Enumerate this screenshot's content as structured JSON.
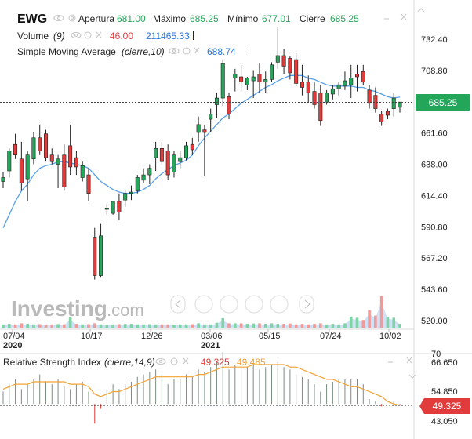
{
  "header": {
    "symbol": "EWG",
    "open_label": "Apertura",
    "open_value": "681.00",
    "high_label": "Máximo",
    "high_value": "685.25",
    "low_label": "Mínimo",
    "low_value": "677.01",
    "close_label": "Cierre",
    "close_value": "685.25",
    "volume_label": "Volume",
    "volume_param": "(9)",
    "volume_value_red": "46.00",
    "volume_value_blue": "211465.33",
    "sma_label": "Simple Moving Average",
    "sma_param": "(cierre,10)",
    "sma_value": "688.74"
  },
  "rsi_header": {
    "label": "Relative Strength Index",
    "param": "(cierre,14,9)",
    "value_red": "49.325",
    "value_orange": "49.485"
  },
  "price_axis": {
    "ticks": [
      "732.40",
      "708.80",
      "685.25",
      "661.60",
      "638.00",
      "614.40",
      "590.80",
      "567.20",
      "543.60",
      "520.00"
    ],
    "current_label": "685.25"
  },
  "rsi_axis": {
    "ticks": [
      "70",
      "66.650",
      "54.850",
      "43.050"
    ],
    "current_label": "49.325"
  },
  "x_axis": {
    "ticks": [
      {
        "label": "07/04",
        "year": "2020"
      },
      {
        "label": "10/17",
        "year": ""
      },
      {
        "label": "12/26",
        "year": ""
      },
      {
        "label": "03/06",
        "year": "2021"
      },
      {
        "label": "05/15",
        "year": ""
      },
      {
        "label": "07/24",
        "year": ""
      },
      {
        "label": "10/02",
        "year": ""
      }
    ]
  },
  "watermark": {
    "brand": "Investing",
    "suffix": ".com"
  },
  "colors": {
    "up": "#26a65b",
    "down": "#e23b3b",
    "sma": "#5aa0e6",
    "rsi_line": "#f4a233",
    "badge": "#23a55a",
    "rsi_badge": "#e23b3b"
  },
  "chart_data": {
    "type": "candlestick",
    "title": "EWG",
    "y_range": [
      520.0,
      742.0
    ],
    "candles": [
      {
        "o": 625,
        "h": 632,
        "l": 620,
        "c": 628
      },
      {
        "o": 633,
        "h": 650,
        "l": 628,
        "c": 648
      },
      {
        "o": 653,
        "h": 661,
        "l": 642,
        "c": 645
      },
      {
        "o": 642,
        "h": 655,
        "l": 618,
        "c": 624
      },
      {
        "o": 627,
        "h": 648,
        "l": 610,
        "c": 645
      },
      {
        "o": 642,
        "h": 662,
        "l": 638,
        "c": 658
      },
      {
        "o": 658,
        "h": 668,
        "l": 645,
        "c": 648
      },
      {
        "o": 661,
        "h": 664,
        "l": 640,
        "c": 643
      },
      {
        "o": 645,
        "h": 650,
        "l": 638,
        "c": 640
      },
      {
        "o": 638,
        "h": 645,
        "l": 620,
        "c": 642
      },
      {
        "o": 645,
        "h": 653,
        "l": 618,
        "c": 621
      },
      {
        "o": 652,
        "h": 668,
        "l": 630,
        "c": 636
      },
      {
        "o": 643,
        "h": 648,
        "l": 630,
        "c": 636
      },
      {
        "o": 628,
        "h": 640,
        "l": 625,
        "c": 637
      },
      {
        "o": 630,
        "h": 635,
        "l": 610,
        "c": 616
      },
      {
        "o": 583,
        "h": 590,
        "l": 551,
        "c": 554
      },
      {
        "o": 554,
        "h": 593,
        "l": 553,
        "c": 584
      },
      {
        "o": 604,
        "h": 608,
        "l": 600,
        "c": 605
      },
      {
        "o": 601,
        "h": 610,
        "l": 600,
        "c": 610
      },
      {
        "o": 610,
        "h": 616,
        "l": 596,
        "c": 602
      },
      {
        "o": 611,
        "h": 618,
        "l": 606,
        "c": 616
      },
      {
        "o": 616,
        "h": 622,
        "l": 611,
        "c": 617
      },
      {
        "o": 618,
        "h": 630,
        "l": 616,
        "c": 628
      },
      {
        "o": 626,
        "h": 635,
        "l": 624,
        "c": 630
      },
      {
        "o": 630,
        "h": 638,
        "l": 623,
        "c": 635
      },
      {
        "o": 643,
        "h": 655,
        "l": 633,
        "c": 650
      },
      {
        "o": 650,
        "h": 655,
        "l": 638,
        "c": 640
      },
      {
        "o": 648,
        "h": 653,
        "l": 626,
        "c": 630
      },
      {
        "o": 632,
        "h": 648,
        "l": 628,
        "c": 645
      },
      {
        "o": 640,
        "h": 648,
        "l": 635,
        "c": 643
      },
      {
        "o": 643,
        "h": 655,
        "l": 641,
        "c": 652
      },
      {
        "o": 653,
        "h": 658,
        "l": 645,
        "c": 649
      },
      {
        "o": 662,
        "h": 674,
        "l": 655,
        "c": 668
      },
      {
        "o": 664,
        "h": 668,
        "l": 629,
        "c": 662
      },
      {
        "o": 672,
        "h": 680,
        "l": 662,
        "c": 676
      },
      {
        "o": 683,
        "h": 692,
        "l": 673,
        "c": 688
      },
      {
        "o": 688,
        "h": 717,
        "l": 682,
        "c": 714
      },
      {
        "o": 689,
        "h": 692,
        "l": 672,
        "c": 676
      },
      {
        "o": 703,
        "h": 710,
        "l": 693,
        "c": 706
      },
      {
        "o": 704,
        "h": 713,
        "l": 693,
        "c": 700
      },
      {
        "o": 698,
        "h": 704,
        "l": 694,
        "c": 703
      },
      {
        "o": 701,
        "h": 709,
        "l": 688,
        "c": 704
      },
      {
        "o": 706,
        "h": 714,
        "l": 692,
        "c": 700
      },
      {
        "o": 700,
        "h": 708,
        "l": 692,
        "c": 702
      },
      {
        "o": 702,
        "h": 715,
        "l": 700,
        "c": 713
      },
      {
        "o": 715,
        "h": 742,
        "l": 710,
        "c": 720
      },
      {
        "o": 720,
        "h": 725,
        "l": 706,
        "c": 712
      },
      {
        "o": 718,
        "h": 720,
        "l": 702,
        "c": 707
      },
      {
        "o": 717,
        "h": 722,
        "l": 697,
        "c": 699
      },
      {
        "o": 700,
        "h": 713,
        "l": 690,
        "c": 696
      },
      {
        "o": 700,
        "h": 705,
        "l": 684,
        "c": 692
      },
      {
        "o": 693,
        "h": 700,
        "l": 680,
        "c": 683
      },
      {
        "o": 692,
        "h": 698,
        "l": 667,
        "c": 671
      },
      {
        "o": 685,
        "h": 694,
        "l": 683,
        "c": 692
      },
      {
        "o": 691,
        "h": 698,
        "l": 687,
        "c": 695
      },
      {
        "o": 695,
        "h": 700,
        "l": 690,
        "c": 698
      },
      {
        "o": 697,
        "h": 708,
        "l": 694,
        "c": 701
      },
      {
        "o": 698,
        "h": 713,
        "l": 688,
        "c": 703
      },
      {
        "o": 706,
        "h": 713,
        "l": 693,
        "c": 704
      },
      {
        "o": 708,
        "h": 713,
        "l": 698,
        "c": 700
      },
      {
        "o": 694,
        "h": 698,
        "l": 680,
        "c": 684
      },
      {
        "o": 690,
        "h": 696,
        "l": 677,
        "c": 680
      },
      {
        "o": 676,
        "h": 678,
        "l": 667,
        "c": 670
      },
      {
        "o": 678,
        "h": 680,
        "l": 672,
        "c": 675
      },
      {
        "o": 680,
        "h": 692,
        "l": 674,
        "c": 688
      },
      {
        "o": 681,
        "h": 685,
        "l": 677,
        "c": 685
      }
    ],
    "sma": [
      590,
      600,
      610,
      618,
      623,
      630,
      635,
      637,
      638,
      640,
      640,
      639,
      638,
      637,
      635,
      630,
      625,
      622,
      619,
      617,
      616,
      616,
      617,
      619,
      622,
      627,
      631,
      634,
      637,
      639,
      641,
      645,
      652,
      658,
      663,
      668,
      673,
      676,
      680,
      684,
      687,
      690,
      693,
      696,
      698,
      701,
      703,
      705,
      705,
      705,
      703,
      702,
      700,
      698,
      697,
      697,
      697,
      697,
      696,
      696,
      694,
      693,
      691,
      689,
      688,
      688.74
    ],
    "volume": [
      0.3,
      0.35,
      0.3,
      0.4,
      0.35,
      0.3,
      0.32,
      0.28,
      0.3,
      0.33,
      0.3,
      0.95,
      0.35,
      0.3,
      0.32,
      0.4,
      0.3,
      0.28,
      0.3,
      0.32,
      0.34,
      0.35,
      0.3,
      0.3,
      0.32,
      0.3,
      0.3,
      0.3,
      0.28,
      0.3,
      0.3,
      0.32,
      0.4,
      0.3,
      0.3,
      0.45,
      0.85,
      0.4,
      0.4,
      0.4,
      0.35,
      0.38,
      0.4,
      0.35,
      0.4,
      0.35,
      0.35,
      0.38,
      0.3,
      0.35,
      0.3,
      0.35,
      0.4,
      0.3,
      0.35,
      0.3,
      0.4,
      1.0,
      0.9,
      0.7,
      1.6,
      1.1,
      2.9,
      1.0,
      0.9,
      0.35
    ],
    "volume_dir": [
      1,
      1,
      0,
      0,
      1,
      1,
      0,
      0,
      0,
      1,
      0,
      1,
      0,
      1,
      0,
      0,
      1,
      1,
      1,
      0,
      1,
      1,
      1,
      1,
      1,
      1,
      0,
      0,
      1,
      1,
      1,
      0,
      1,
      1,
      1,
      1,
      1,
      0,
      1,
      0,
      1,
      1,
      0,
      1,
      1,
      1,
      0,
      0,
      0,
      0,
      0,
      0,
      0,
      1,
      1,
      1,
      1,
      1,
      1,
      0,
      0,
      0,
      0,
      1,
      1,
      1
    ],
    "rsi": {
      "range": [
        35,
        75
      ],
      "values": [
        55,
        58,
        60,
        56,
        58,
        60,
        62,
        59,
        58,
        60,
        57,
        56,
        58,
        59,
        55,
        42,
        48,
        56,
        58,
        56,
        58,
        59,
        61,
        62,
        63,
        64,
        62,
        58,
        60,
        60,
        62,
        61,
        64,
        63,
        65,
        67,
        71,
        64,
        66,
        65,
        65,
        66,
        64,
        65,
        66,
        67,
        65,
        64,
        62,
        61,
        60,
        58,
        55,
        58,
        59,
        60,
        60,
        60,
        60,
        58,
        52,
        51,
        49,
        50,
        51,
        49.325
      ],
      "signal": [
        56,
        57,
        58,
        58,
        58,
        59,
        59,
        59,
        59,
        59,
        59,
        58,
        58,
        58,
        57,
        54,
        53,
        54,
        55,
        55,
        56,
        57,
        58,
        59,
        60,
        61,
        61,
        61,
        61,
        61,
        61,
        61,
        62,
        62,
        63,
        64,
        65,
        65,
        65,
        65,
        65,
        66,
        66,
        66,
        66,
        66,
        66,
        65,
        65,
        64,
        63,
        62,
        61,
        60,
        60,
        59,
        58,
        57,
        57,
        56,
        55,
        54,
        53,
        51,
        50,
        49.485
      ],
      "midline": 50
    }
  }
}
